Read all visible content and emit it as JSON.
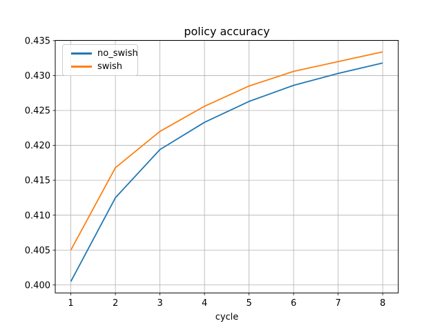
{
  "chart_data": {
    "type": "line",
    "title": "policy accuracy",
    "xlabel": "cycle",
    "ylabel": "",
    "x": [
      1,
      2,
      3,
      4,
      5,
      6,
      7,
      8
    ],
    "series": [
      {
        "name": "no_swish",
        "color": "#1f77b4",
        "values": [
          0.4005,
          0.4125,
          0.4194,
          0.4233,
          0.4263,
          0.4286,
          0.4303,
          0.4318
        ]
      },
      {
        "name": "swish",
        "color": "#ff7f0e",
        "values": [
          0.405,
          0.4168,
          0.422,
          0.4256,
          0.4285,
          0.4306,
          0.432,
          0.4334
        ]
      }
    ],
    "xlim": [
      0.65,
      8.35
    ],
    "ylim": [
      0.39886,
      0.43504
    ],
    "xticks": [
      1,
      2,
      3,
      4,
      5,
      6,
      7,
      8
    ],
    "yticks": [
      0.4,
      0.405,
      0.41,
      0.415,
      0.42,
      0.425,
      0.43,
      0.435
    ],
    "ytick_decimals": 3,
    "grid": true,
    "grid_color": "#b0b0b0",
    "spine_color": "#000000",
    "legend_position": "upper left",
    "legend_labels": [
      "no_swish",
      "swish"
    ]
  }
}
